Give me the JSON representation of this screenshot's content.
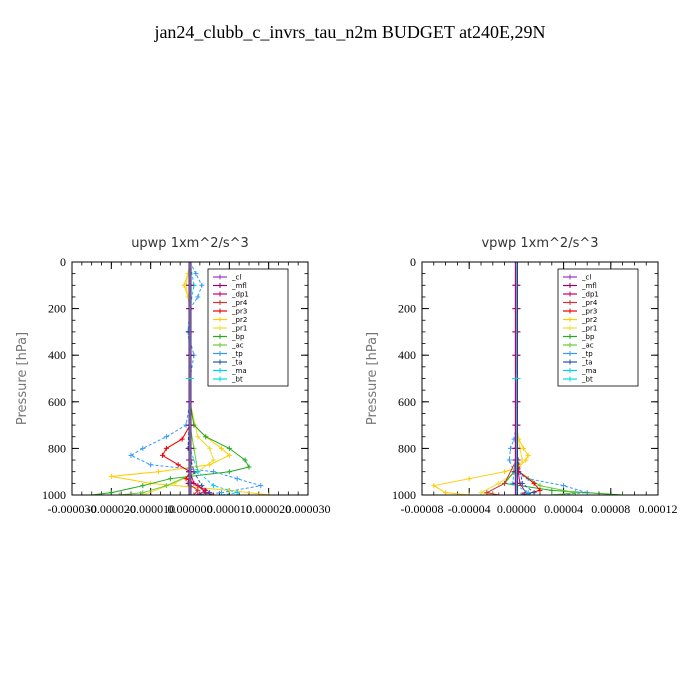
{
  "title": "jan24_clubb_c_invrs_tau_n2m  BUDGET at240E,29N",
  "legend_entries": [
    "_cl",
    "_mfl",
    "_dp1",
    "_pr4",
    "_pr3",
    "_pr2",
    "_pr1",
    "_bp",
    "_ac",
    "_tp",
    "_ta",
    "_ma",
    "_bt"
  ],
  "colors": {
    "_cl": "#9933cc",
    "_mfl": "#990066",
    "_dp1": "#cc0066",
    "_pr4": "#cc3333",
    "_pr3": "#ee0000",
    "_pr2": "#ffcc00",
    "_pr1": "#eedd33",
    "_bp": "#22aa22",
    "_ac": "#66cc33",
    "_tp": "#3399ff",
    "_ta": "#2255aa",
    "_ma": "#00ccff",
    "_bt": "#00dddd"
  },
  "chart_data": [
    {
      "type": "line",
      "title": "upwp   1xm^2/s^3",
      "ylabel": "Pressure  [hPa]",
      "xlim": [
        -3e-05,
        3e-05
      ],
      "ylim": [
        1000,
        0
      ],
      "xticks": [
        "-0.000030",
        "-0.000020",
        "-0.000010",
        "0.000000",
        "0.000010",
        "0.000020",
        "0.000030"
      ],
      "yticks": [
        "0",
        "200",
        "400",
        "600",
        "800",
        "1000"
      ],
      "legend_position": "top-right",
      "series": [
        {
          "name": "_tp",
          "p": [
            0,
            50,
            100,
            150,
            200,
            300,
            400,
            500,
            600,
            700,
            750,
            800,
            830,
            870,
            900,
            930,
            960,
            990,
            1000
          ],
          "v": [
            0,
            1.5e-06,
            3e-06,
            2e-06,
            0,
            -5e-07,
            1e-06,
            0,
            0,
            -1e-06,
            -6e-06,
            -1.2e-05,
            -1.5e-05,
            -1e-05,
            6e-06,
            1.2e-05,
            1.8e-05,
            8e-06,
            0
          ]
        },
        {
          "name": "_pr2",
          "p": [
            0,
            50,
            100,
            150,
            200,
            400,
            600,
            700,
            750,
            800,
            830,
            870,
            900,
            920,
            950,
            980,
            1000
          ],
          "v": [
            0,
            -5e-07,
            -1.5e-06,
            -5e-07,
            0,
            0,
            0,
            1e-06,
            4e-06,
            8e-06,
            1e-05,
            5e-06,
            -8e-06,
            -2e-05,
            -1e-05,
            1e-05,
            2e-05
          ]
        },
        {
          "name": "_pr1",
          "p": [
            0,
            100,
            200,
            600,
            750,
            800,
            850,
            900,
            950,
            1000
          ],
          "v": [
            0,
            -1e-06,
            0,
            0,
            2e-06,
            5e-06,
            6e-06,
            2e-06,
            -4e-06,
            -1.2e-05
          ]
        },
        {
          "name": "_bp",
          "p": [
            0,
            600,
            700,
            750,
            800,
            850,
            880,
            900,
            930,
            960,
            990,
            1000
          ],
          "v": [
            0,
            0,
            1e-06,
            4e-06,
            1e-05,
            1.4e-05,
            1.5e-05,
            1e-05,
            -5e-06,
            -1.2e-05,
            -2e-05,
            -2.5e-05
          ]
        },
        {
          "name": "_ac",
          "p": [
            0,
            700,
            800,
            900,
            960,
            990,
            1000
          ],
          "v": [
            0,
            0,
            1e-06,
            2e-06,
            -6e-06,
            -1.2e-05,
            -1.8e-05
          ]
        },
        {
          "name": "_pr3",
          "p": [
            0,
            700,
            760,
            800,
            830,
            870,
            900,
            930,
            960,
            990,
            1000
          ],
          "v": [
            0,
            0,
            -2e-06,
            -6e-06,
            -7e-06,
            -3e-06,
            0,
            -1e-06,
            2e-06,
            4e-06,
            6e-06
          ]
        },
        {
          "name": "_ma",
          "p": [
            0,
            100,
            200,
            300,
            400,
            500,
            600,
            800,
            900,
            960,
            990,
            1000
          ],
          "v": [
            0,
            1e-06,
            0,
            -5e-07,
            0,
            0,
            0,
            0,
            2e-06,
            6e-06,
            1.2e-05,
            8e-06
          ]
        },
        {
          "name": "_ta",
          "p": [
            0,
            200,
            400,
            600,
            800,
            900,
            960,
            990,
            1000
          ],
          "v": [
            0,
            0,
            0,
            0,
            -5e-07,
            1e-06,
            3e-06,
            5e-06,
            2e-06
          ]
        },
        {
          "name": "_dp1",
          "p": [
            0,
            800,
            900,
            950,
            980,
            1000
          ],
          "v": [
            0,
            0,
            0,
            1e-06,
            4e-06,
            2e-06
          ]
        },
        {
          "name": "_pr4",
          "p": [
            0,
            800,
            900,
            950,
            980,
            1000
          ],
          "v": [
            0,
            0,
            0,
            -5e-07,
            2e-06,
            1e-06
          ]
        },
        {
          "name": "_cl",
          "p": [
            0,
            100,
            200,
            300,
            400,
            500,
            600,
            700,
            800,
            850,
            900,
            950,
            1000
          ],
          "v": [
            0,
            0,
            0,
            0,
            0,
            0,
            0,
            0,
            0,
            0,
            0,
            0,
            0
          ]
        },
        {
          "name": "_mfl",
          "p": [
            0,
            100,
            200,
            300,
            400,
            500,
            600,
            700,
            800,
            850,
            900,
            950,
            1000
          ],
          "v": [
            0,
            0,
            0,
            0,
            0,
            0,
            0,
            0,
            0,
            0,
            0,
            0,
            0
          ]
        },
        {
          "name": "_bt",
          "p": [
            0,
            500,
            1000
          ],
          "v": [
            0,
            0,
            0
          ]
        }
      ]
    },
    {
      "type": "line",
      "title": "vpwp   1xm^2/s^3",
      "ylabel": "Pressure  [hPa]",
      "xlim": [
        -8e-05,
        0.00012
      ],
      "ylim": [
        1000,
        0
      ],
      "xticks": [
        "-0.00008",
        "-0.00004",
        "0.00000",
        "0.00004",
        "0.00008",
        "0.00012"
      ],
      "yticks": [
        "0",
        "200",
        "400",
        "600",
        "800",
        "1000"
      ],
      "legend_position": "top-right",
      "series": [
        {
          "name": "_pr2",
          "p": [
            0,
            700,
            760,
            800,
            830,
            850,
            880,
            900,
            930,
            960,
            990,
            1000
          ],
          "v": [
            0,
            0,
            2e-06,
            6e-06,
            1e-05,
            8e-06,
            2e-06,
            -1e-05,
            -4e-05,
            -7e-05,
            -6e-05,
            -4e-05
          ]
        },
        {
          "name": "_pr1",
          "p": [
            0,
            700,
            800,
            850,
            900,
            950,
            990,
            1000
          ],
          "v": [
            0,
            0,
            3e-06,
            5e-06,
            0,
            -1.5e-05,
            -3e-05,
            -2e-05
          ]
        },
        {
          "name": "_tp",
          "p": [
            0,
            700,
            760,
            800,
            850,
            900,
            930,
            960,
            990,
            1000
          ],
          "v": [
            0,
            0,
            -2e-06,
            -5e-06,
            -6e-06,
            -2e-06,
            1e-05,
            4e-05,
            6e-05,
            3e-05
          ]
        },
        {
          "name": "_bp",
          "p": [
            0,
            800,
            900,
            950,
            980,
            1000
          ],
          "v": [
            0,
            0,
            -2e-06,
            -1e-05,
            3e-05,
            9e-05
          ]
        },
        {
          "name": "_ac",
          "p": [
            0,
            800,
            900,
            960,
            990,
            1000
          ],
          "v": [
            0,
            0,
            2e-06,
            2e-05,
            5e-05,
            3e-05
          ]
        },
        {
          "name": "_pr3",
          "p": [
            0,
            800,
            900,
            950,
            980,
            1000
          ],
          "v": [
            0,
            0,
            2e-06,
            1.5e-05,
            2e-05,
            5e-06
          ]
        },
        {
          "name": "_pr4",
          "p": [
            0,
            850,
            950,
            990,
            1000
          ],
          "v": [
            0,
            0,
            -1e-05,
            -2.5e-05,
            -1.5e-05
          ]
        },
        {
          "name": "_dp1",
          "p": [
            0,
            850,
            950,
            990,
            1000
          ],
          "v": [
            0,
            0,
            3e-06,
            8e-06,
            4e-06
          ]
        },
        {
          "name": "_ta",
          "p": [
            0,
            800,
            950,
            990,
            1000
          ],
          "v": [
            0,
            0,
            5e-06,
            1.5e-05,
            8e-06
          ]
        },
        {
          "name": "_ma",
          "p": [
            0,
            800,
            950,
            990,
            1000
          ],
          "v": [
            0,
            0,
            -3e-06,
            1e-05,
            4e-06
          ]
        },
        {
          "name": "_cl",
          "p": [
            0,
            100,
            200,
            300,
            400,
            500,
            600,
            700,
            800,
            850,
            900,
            950,
            1000
          ],
          "v": [
            0,
            0,
            0,
            0,
            0,
            0,
            0,
            0,
            0,
            0,
            0,
            0,
            0
          ]
        },
        {
          "name": "_mfl",
          "p": [
            0,
            100,
            200,
            300,
            400,
            500,
            600,
            700,
            800,
            850,
            900,
            950,
            1000
          ],
          "v": [
            0,
            0,
            0,
            0,
            0,
            0,
            0,
            0,
            0,
            0,
            0,
            0,
            0
          ]
        },
        {
          "name": "_bt",
          "p": [
            0,
            500,
            1000
          ],
          "v": [
            0,
            0,
            0
          ]
        }
      ]
    }
  ]
}
